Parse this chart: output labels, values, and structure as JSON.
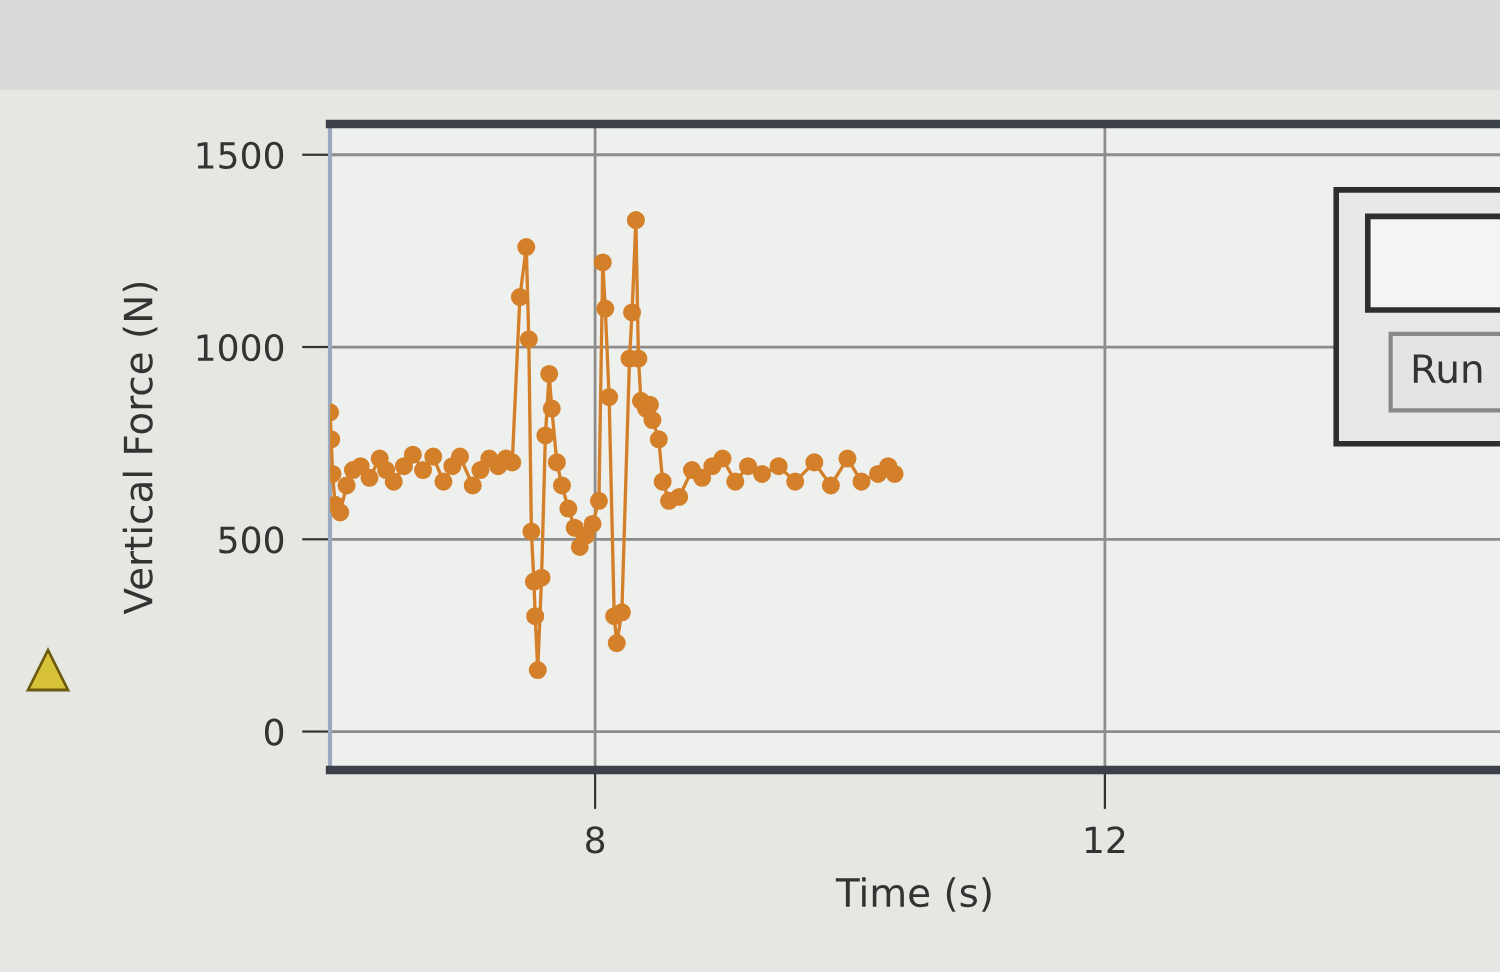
{
  "chart_data": {
    "type": "line",
    "xlabel": "Time (s)",
    "ylabel": "Vertical Force (N)",
    "x": [
      5.92,
      5.93,
      5.94,
      5.96,
      6.0,
      6.05,
      6.1,
      6.16,
      6.23,
      6.31,
      6.36,
      6.42,
      6.5,
      6.57,
      6.65,
      6.73,
      6.81,
      6.88,
      6.94,
      7.04,
      7.1,
      7.17,
      7.24,
      7.3,
      7.35,
      7.41,
      7.46,
      7.48,
      7.5,
      7.52,
      7.53,
      7.55,
      7.58,
      7.61,
      7.64,
      7.66,
      7.7,
      7.74,
      7.79,
      7.84,
      7.88,
      7.93,
      7.98,
      8.03,
      8.06,
      8.08,
      8.11,
      8.15,
      8.17,
      8.21,
      8.27,
      8.29,
      8.32,
      8.34,
      8.36,
      8.4,
      8.43,
      8.45,
      8.5,
      8.53,
      8.58,
      8.66,
      8.76,
      8.84,
      8.92,
      9.0,
      9.1,
      9.2,
      9.31,
      9.44,
      9.57,
      9.72,
      9.85,
      9.98,
      10.09,
      10.22,
      10.3,
      10.35
    ],
    "values": [
      830,
      760,
      670,
      590,
      570,
      640,
      680,
      690,
      660,
      710,
      680,
      650,
      690,
      720,
      680,
      715,
      650,
      690,
      715,
      640,
      680,
      710,
      690,
      710,
      700,
      1130,
      1260,
      1020,
      520,
      390,
      300,
      160,
      400,
      770,
      930,
      840,
      700,
      640,
      580,
      530,
      480,
      510,
      540,
      600,
      1220,
      1100,
      870,
      300,
      230,
      310,
      970,
      1090,
      1330,
      970,
      860,
      840,
      850,
      810,
      760,
      650,
      600,
      610,
      680,
      660,
      690,
      710,
      650,
      690,
      670,
      690,
      650,
      700,
      640,
      710,
      650,
      670,
      690,
      670
    ],
    "color": "#d4802a",
    "marker": "circle",
    "line_style": "solid",
    "xlim": [
      5.92,
      15.1
    ],
    "ylim": [
      -100,
      1580
    ],
    "xticks": [
      8,
      12
    ],
    "yticks": [
      0,
      500,
      1000,
      1500
    ],
    "grid": true,
    "annotations": [
      "Run"
    ]
  }
}
